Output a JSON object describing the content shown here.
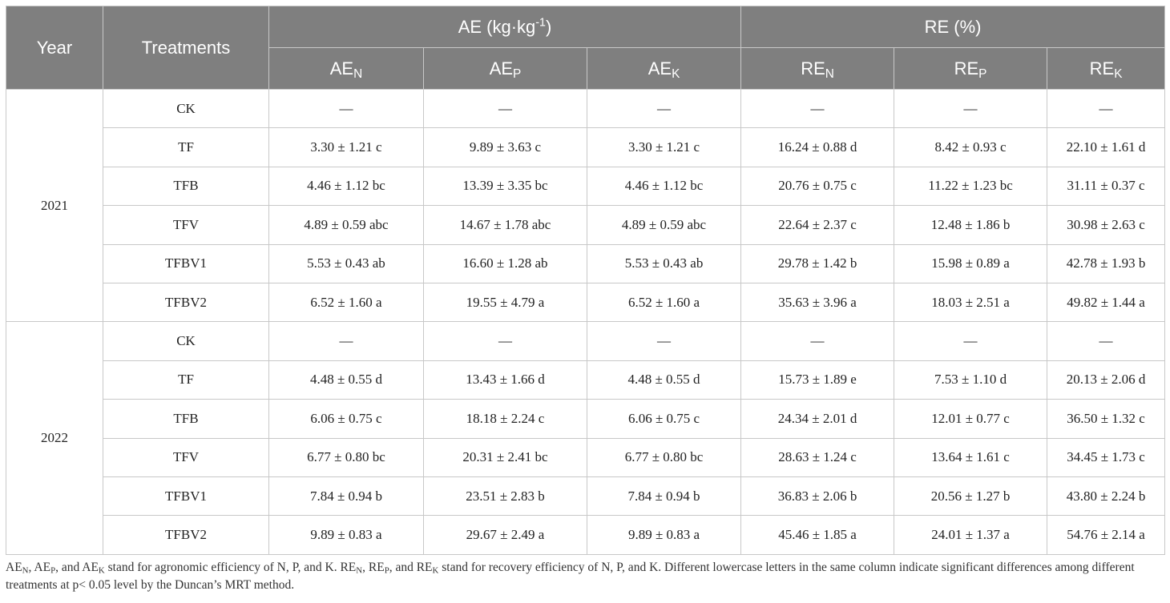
{
  "header": {
    "year": "Year",
    "treatments": "Treatments",
    "ae_group": {
      "base": "AE (kg·kg",
      "sup": "-1",
      "tail": ")"
    },
    "re_group": "RE (%)",
    "sub_columns": [
      {
        "base": "AE",
        "sub": "N"
      },
      {
        "base": "AE",
        "sub": "P"
      },
      {
        "base": "AE",
        "sub": "K"
      },
      {
        "base": "RE",
        "sub": "N"
      },
      {
        "base": "RE",
        "sub": "P"
      },
      {
        "base": "RE",
        "sub": "K"
      }
    ]
  },
  "groups": [
    {
      "year": "2021",
      "rows": [
        {
          "treatment": "CK",
          "values": [
            "—",
            "—",
            "—",
            "—",
            "—",
            "—"
          ]
        },
        {
          "treatment": "TF",
          "values": [
            "3.30 ± 1.21 c",
            "9.89 ± 3.63 c",
            "3.30 ± 1.21 c",
            "16.24 ± 0.88 d",
            "8.42 ± 0.93 c",
            "22.10 ± 1.61 d"
          ]
        },
        {
          "treatment": "TFB",
          "values": [
            "4.46 ± 1.12 bc",
            "13.39 ± 3.35 bc",
            "4.46 ± 1.12 bc",
            "20.76 ± 0.75 c",
            "11.22 ± 1.23 bc",
            "31.11 ± 0.37 c"
          ]
        },
        {
          "treatment": "TFV",
          "values": [
            "4.89 ± 0.59 abc",
            "14.67 ± 1.78 abc",
            "4.89 ± 0.59 abc",
            "22.64 ± 2.37 c",
            "12.48 ± 1.86 b",
            "30.98 ± 2.63 c"
          ]
        },
        {
          "treatment": "TFBV1",
          "values": [
            "5.53 ± 0.43 ab",
            "16.60 ± 1.28 ab",
            "5.53 ± 0.43 ab",
            "29.78 ± 1.42 b",
            "15.98 ± 0.89 a",
            "42.78 ± 1.93 b"
          ]
        },
        {
          "treatment": "TFBV2",
          "values": [
            "6.52 ± 1.60 a",
            "19.55 ± 4.79 a",
            "6.52 ± 1.60 a",
            "35.63 ± 3.96 a",
            "18.03 ± 2.51 a",
            "49.82 ± 1.44 a"
          ]
        }
      ]
    },
    {
      "year": "2022",
      "rows": [
        {
          "treatment": "CK",
          "values": [
            "—",
            "—",
            "—",
            "—",
            "—",
            "—"
          ]
        },
        {
          "treatment": "TF",
          "values": [
            "4.48 ± 0.55 d",
            "13.43 ± 1.66 d",
            "4.48 ± 0.55 d",
            "15.73 ± 1.89 e",
            "7.53 ± 1.10 d",
            "20.13 ± 2.06 d"
          ]
        },
        {
          "treatment": "TFB",
          "values": [
            "6.06 ± 0.75 c",
            "18.18 ± 2.24 c",
            "6.06 ± 0.75 c",
            "24.34 ± 2.01 d",
            "12.01 ± 0.77 c",
            "36.50 ± 1.32 c"
          ]
        },
        {
          "treatment": "TFV",
          "values": [
            "6.77 ± 0.80 bc",
            "20.31 ± 2.41 bc",
            "6.77 ± 0.80 bc",
            "28.63 ± 1.24 c",
            "13.64 ± 1.61 c",
            "34.45 ± 1.73 c"
          ]
        },
        {
          "treatment": "TFBV1",
          "values": [
            "7.84 ± 0.94 b",
            "23.51 ± 2.83 b",
            "7.84 ± 0.94 b",
            "36.83 ± 2.06 b",
            "20.56 ± 1.27 b",
            "43.80 ± 2.24 b"
          ]
        },
        {
          "treatment": "TFBV2",
          "values": [
            "9.89 ± 0.83 a",
            "29.67 ± 2.49 a",
            "9.89 ± 0.83 a",
            "45.46 ± 1.85 a",
            "24.01 ± 1.37 a",
            "54.76 ± 2.14 a"
          ]
        }
      ]
    }
  ],
  "footnote": {
    "segments": [
      {
        "t": "AE"
      },
      {
        "sub": "N"
      },
      {
        "t": ", AE"
      },
      {
        "sub": "P"
      },
      {
        "t": ", and AE"
      },
      {
        "sub": "K"
      },
      {
        "t": " stand for agronomic efficiency of N, P, and K. RE"
      },
      {
        "sub": "N"
      },
      {
        "t": ", RE"
      },
      {
        "sub": "P"
      },
      {
        "t": ", and RE"
      },
      {
        "sub": "K"
      },
      {
        "t": " stand for recovery efficiency of N, P, and K. Different lowercase letters in the same column indicate significant differences among different treatments at p< 0.05 level by the Duncan’s MRT method."
      }
    ]
  }
}
